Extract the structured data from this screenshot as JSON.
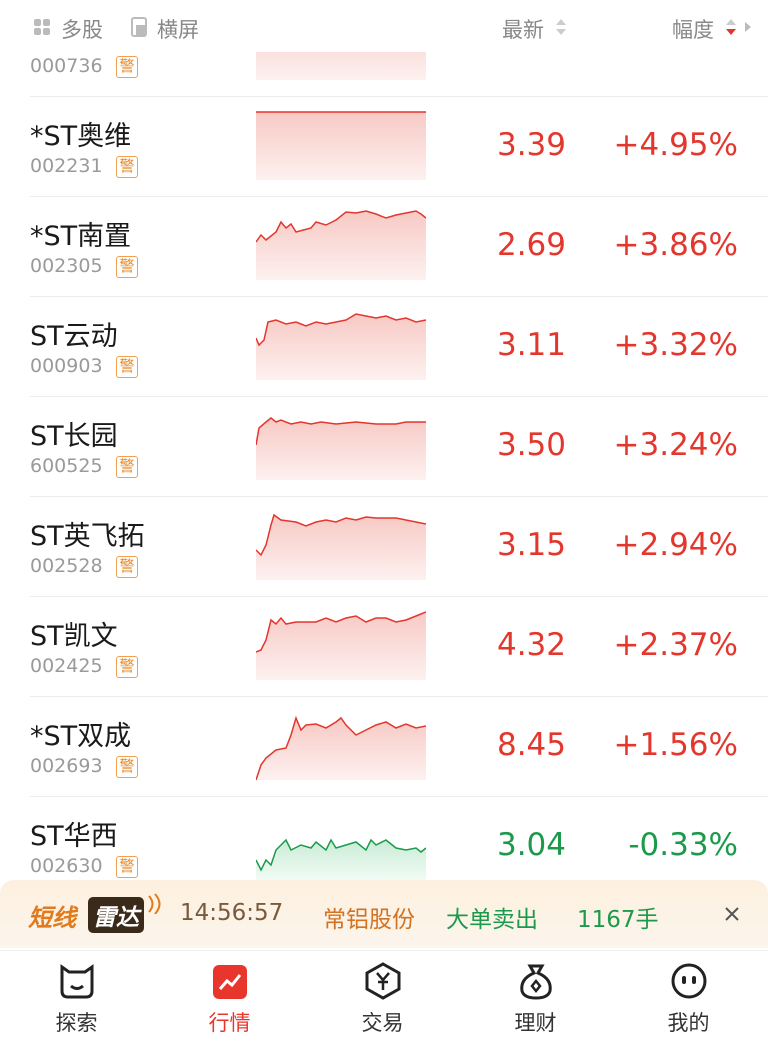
{
  "header": {
    "multi": "多股",
    "landscape": "横屏",
    "latest": "最新",
    "change": "幅度"
  },
  "partial_row": {
    "code": "000736",
    "badge": "警"
  },
  "rows": [
    {
      "name": "*ST奥维",
      "code": "002231",
      "badge": "警",
      "price": "3.39",
      "change": "+4.95%"
    },
    {
      "name": "*ST南置",
      "code": "002305",
      "badge": "警",
      "price": "2.69",
      "change": "+3.86%"
    },
    {
      "name": "ST云动",
      "code": "000903",
      "badge": "警",
      "price": "3.11",
      "change": "+3.32%"
    },
    {
      "name": "ST长园",
      "code": "600525",
      "badge": "警",
      "price": "3.50",
      "change": "+3.24%"
    },
    {
      "name": "ST英飞拓",
      "code": "002528",
      "badge": "警",
      "price": "3.15",
      "change": "+2.94%"
    },
    {
      "name": "ST凯文",
      "code": "002425",
      "badge": "警",
      "price": "4.32",
      "change": "+2.37%"
    },
    {
      "name": "*ST双成",
      "code": "002693",
      "badge": "警",
      "price": "8.45",
      "change": "+1.56%"
    },
    {
      "name": "ST华西",
      "code": "002630",
      "badge": "警",
      "price": "3.04",
      "change": "-0.33%"
    }
  ],
  "banner": {
    "logo_a": "短线",
    "logo_b": "雷达",
    "time": "14:56:57",
    "stock": "常铝股份",
    "signal": "大单卖出",
    "volume": "1167手"
  },
  "nav": [
    "探索",
    "行情",
    "交易",
    "理财",
    "我的"
  ]
}
